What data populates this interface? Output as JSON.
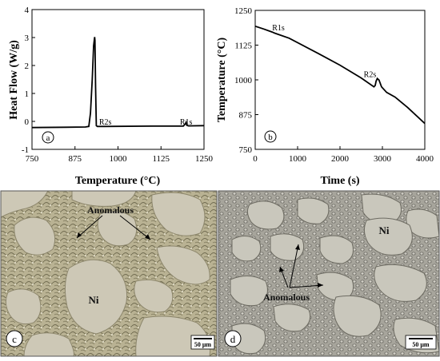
{
  "panels": {
    "a": {
      "label": "a"
    },
    "b": {
      "label": "b"
    },
    "c": {
      "label": "c",
      "phase_label": "Ni",
      "annotation": "Anomalous",
      "scale_bar": "50 μm"
    },
    "d": {
      "label": "d",
      "phase_label": "Ni",
      "annotation": "Anomalous",
      "scale_bar": "50 μm"
    }
  },
  "chart_data": [
    {
      "type": "line",
      "panel": "a",
      "xlabel": "Temperature (°C)",
      "ylabel": "Heat Flow (W/g)",
      "xlim": [
        750,
        1250
      ],
      "ylim": [
        -1,
        4
      ],
      "xticks": [
        750,
        875,
        1000,
        1125,
        1250
      ],
      "yticks": [
        -1,
        0,
        1,
        2,
        3,
        4
      ],
      "series": [
        {
          "x": [
            750,
            850,
            905,
            915,
            920,
            925,
            929,
            932,
            933,
            935,
            937,
            940,
            960,
            1100,
            1190,
            1195,
            1198,
            1200,
            1205,
            1250
          ],
          "y": [
            -0.22,
            -0.21,
            -0.2,
            -0.18,
            0.3,
            1.5,
            2.7,
            3.02,
            2.9,
            1.2,
            -0.15,
            -0.18,
            -0.18,
            -0.17,
            -0.17,
            -0.1,
            -0.03,
            -0.14,
            -0.16,
            -0.15
          ]
        }
      ],
      "annotations": [
        {
          "text": "R2s",
          "x": 945,
          "y": -0.12
        },
        {
          "text": "R1s",
          "x": 1180,
          "y": -0.12
        }
      ]
    },
    {
      "type": "line",
      "panel": "b",
      "xlabel": "Time (s)",
      "ylabel": "Temperature (°C)",
      "xlim": [
        0,
        4000
      ],
      "ylim": [
        750,
        1250
      ],
      "xticks": [
        0,
        1000,
        2000,
        3000,
        4000
      ],
      "yticks": [
        750,
        875,
        1000,
        1125,
        1250
      ],
      "series": [
        {
          "x": [
            0,
            200,
            400,
            430,
            460,
            800,
            1500,
            2000,
            2500,
            2800,
            2830,
            2850,
            2880,
            2920,
            2980,
            3100,
            3300,
            3600,
            4000
          ],
          "y": [
            1193,
            1183,
            1172,
            1170,
            1168,
            1150,
            1094,
            1053,
            1007,
            975,
            980,
            995,
            1005,
            999,
            975,
            955,
            938,
            900,
            843
          ]
        }
      ],
      "annotations": [
        {
          "text": "R1s",
          "x": 400,
          "y": 1178
        },
        {
          "text": "R2s",
          "x": 2560,
          "y": 1010
        }
      ]
    }
  ]
}
